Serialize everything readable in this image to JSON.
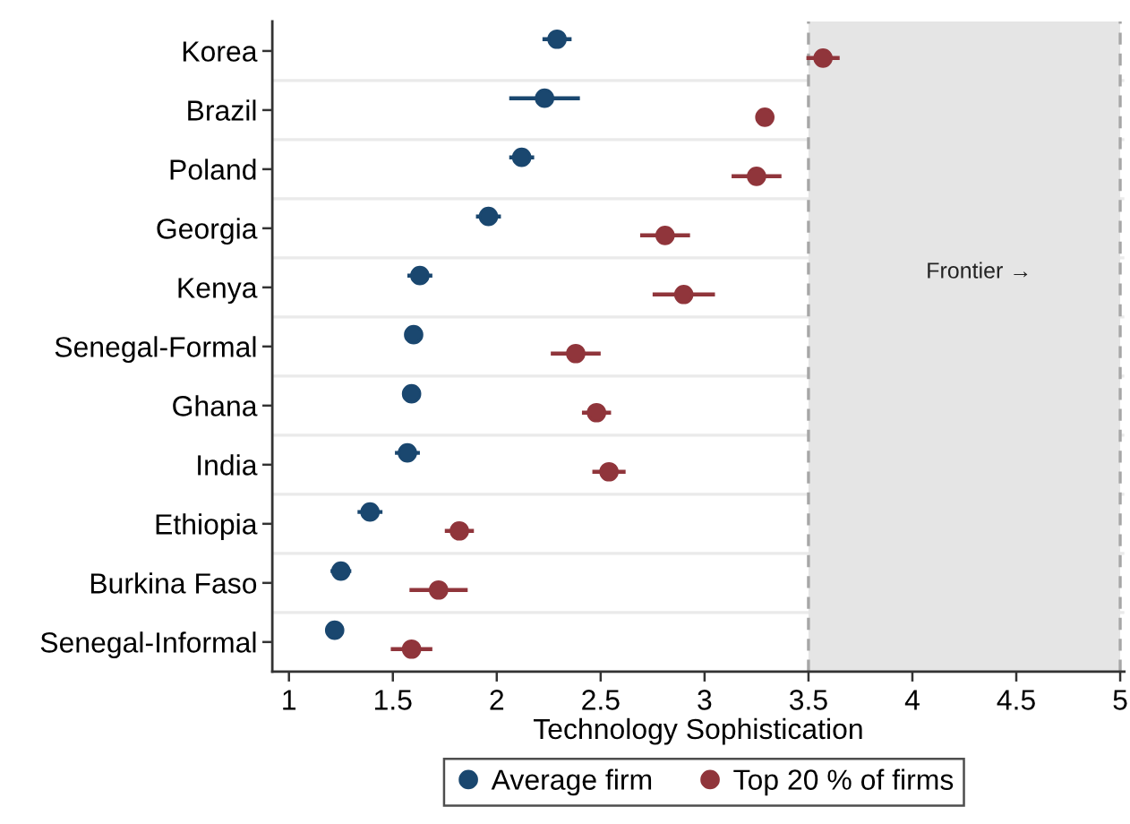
{
  "chart_data": {
    "type": "scatter",
    "orientation": "horizontal",
    "categories": [
      "Korea",
      "Brazil",
      "Poland",
      "Georgia",
      "Kenya",
      "Senegal-Formal",
      "Ghana",
      "India",
      "Ethiopia",
      "Burkina Faso",
      "Senegal-Informal"
    ],
    "xlabel": "Technology Sophistication",
    "xlim": [
      0.92,
      5.02
    ],
    "xticks": [
      1,
      1.5,
      2,
      2.5,
      3,
      3.5,
      4,
      4.5,
      5
    ],
    "series": [
      {
        "name": "Average firm",
        "color": "#1a476f",
        "values": [
          2.29,
          2.23,
          2.12,
          1.96,
          1.63,
          1.6,
          1.59,
          1.57,
          1.39,
          1.25,
          1.22
        ],
        "errors": [
          0.07,
          0.17,
          0.06,
          0.06,
          0.06,
          0.04,
          0.03,
          0.06,
          0.06,
          0.05,
          null
        ]
      },
      {
        "name": "Top 20 % of firms",
        "color": "#90353b",
        "values": [
          3.57,
          3.29,
          3.25,
          2.81,
          2.9,
          2.38,
          2.48,
          2.54,
          1.82,
          1.72,
          1.59
        ],
        "errors": [
          0.08,
          null,
          0.12,
          0.12,
          0.15,
          0.12,
          0.07,
          0.08,
          0.07,
          0.14,
          0.1
        ]
      }
    ],
    "bands": [
      {
        "axis": "x",
        "from": 3.5,
        "to": 5,
        "label": "Frontier →",
        "color": "#e5e5e5"
      }
    ],
    "ref_lines": [
      {
        "axis": "x",
        "value": 3.5,
        "line_style": "dashed",
        "color": "#a6a6a6"
      },
      {
        "axis": "x",
        "value": 5,
        "line_style": "dashed",
        "color": "#a6a6a6"
      }
    ],
    "grid": "y",
    "legend": "bottom",
    "marker": "circle"
  }
}
